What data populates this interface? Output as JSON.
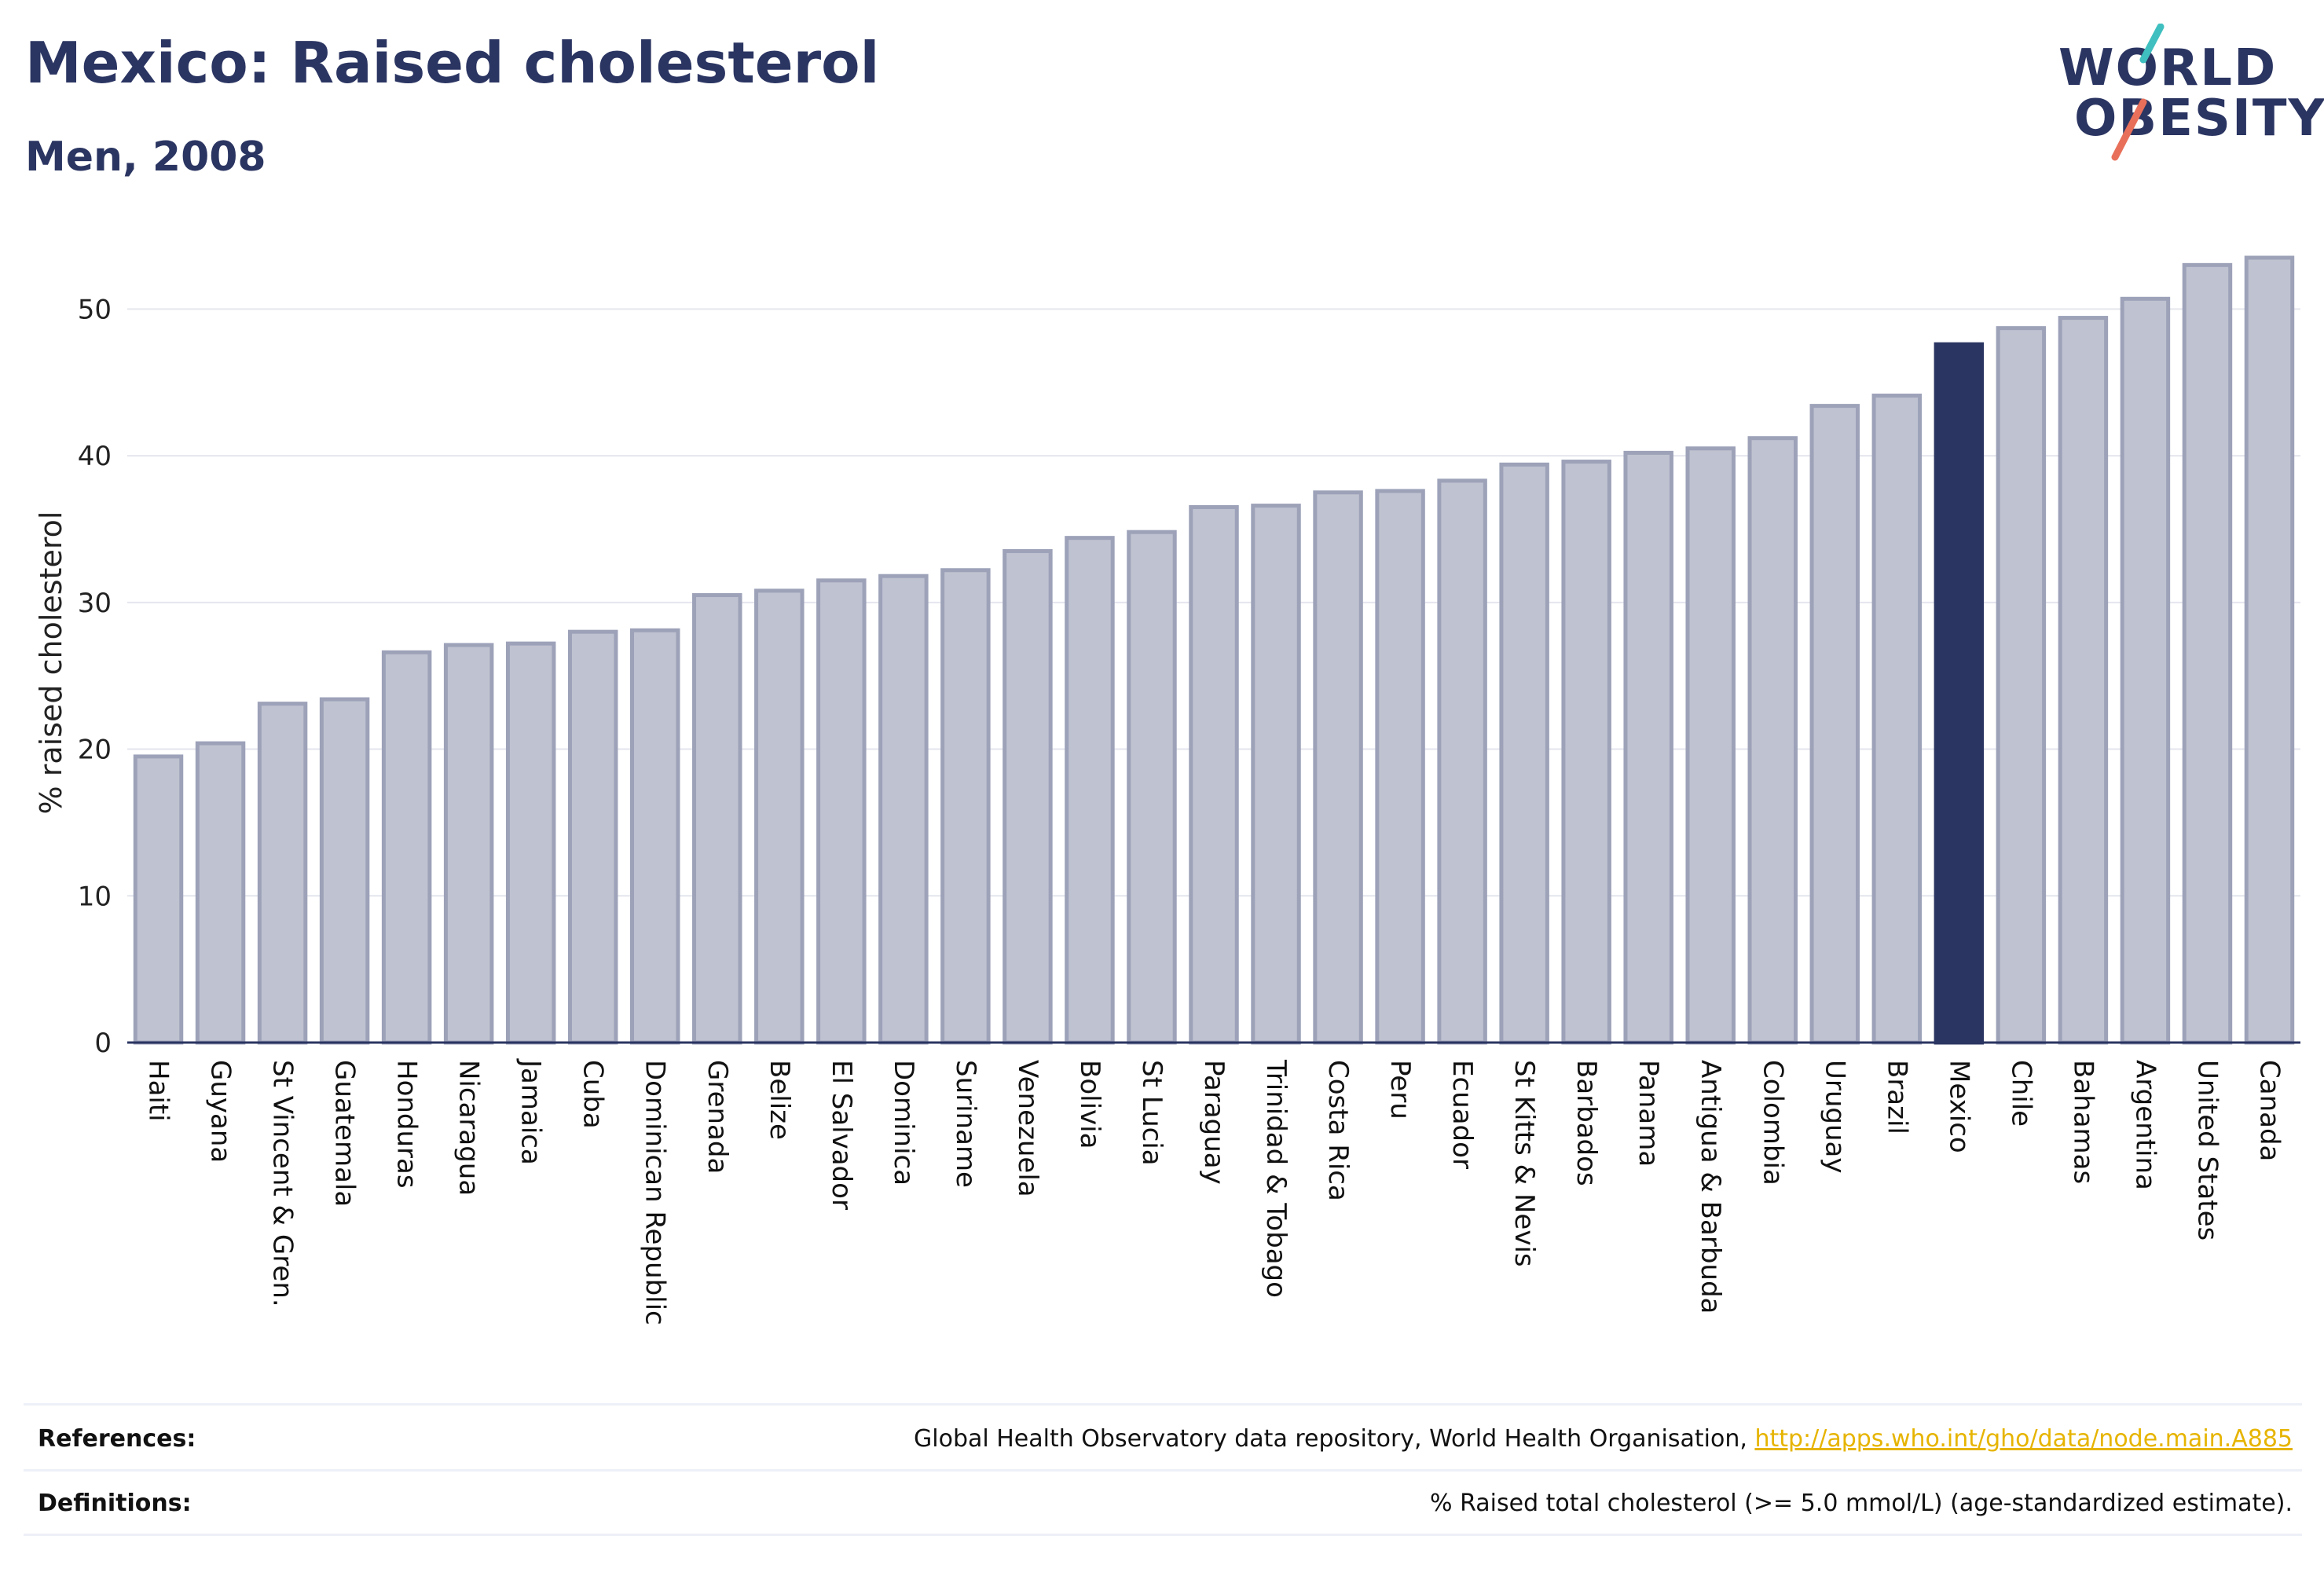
{
  "header": {
    "title": "Mexico: Raised cholesterol",
    "subtitle": "Men, 2008"
  },
  "logo": {
    "line1": "WORLD",
    "line2": "OBESITY",
    "slash_colors": [
      "#3fbfbf",
      "#e8705a"
    ]
  },
  "colors": {
    "highlight": "#2b3562",
    "bar_fill": "#bfc2d0",
    "bar_edge": "#9da2b9",
    "grid": "#e4e6ee",
    "axis": "#2b3562",
    "title": "#2b3562",
    "link": "#e6b400"
  },
  "chart_data": {
    "type": "bar",
    "ylabel": "% raised cholesterol",
    "ylim": [
      0,
      55
    ],
    "yticks": [
      0,
      10,
      20,
      30,
      40,
      50
    ],
    "highlight": "Mexico",
    "grid": true,
    "categories": [
      "Haiti",
      "Guyana",
      "St Vincent & Gren.",
      "Guatemala",
      "Honduras",
      "Nicaragua",
      "Jamaica",
      "Cuba",
      "Dominican Republic",
      "Grenada",
      "Belize",
      "El Salvador",
      "Dominica",
      "Suriname",
      "Venezuela",
      "Bolivia",
      "St Lucia",
      "Paraguay",
      "Trinidad & Tobago",
      "Costa Rica",
      "Peru",
      "Ecuador",
      "St Kitts & Nevis",
      "Barbados",
      "Panama",
      "Antigua & Barbuda",
      "Colombia",
      "Uruguay",
      "Brazil",
      "Mexico",
      "Chile",
      "Bahamas",
      "Argentina",
      "United States",
      "Canada"
    ],
    "values": [
      19.5,
      20.4,
      23.1,
      23.4,
      26.6,
      27.1,
      27.2,
      28.0,
      28.1,
      30.5,
      30.8,
      31.5,
      31.8,
      32.2,
      33.5,
      34.4,
      34.8,
      36.5,
      36.6,
      37.5,
      37.6,
      38.3,
      39.4,
      39.6,
      40.2,
      40.5,
      41.2,
      43.4,
      44.1,
      47.6,
      48.7,
      49.4,
      50.7,
      53.0,
      53.5
    ]
  },
  "footer": {
    "references_label": "References:",
    "references_text": "Global Health Observatory data repository, World Health Organisation, ",
    "references_link": "http://apps.who.int/gho/data/node.main.A885",
    "definitions_label": "Definitions:",
    "definitions_text": "% Raised total cholesterol (>= 5.0 mmol/L) (age-standardized estimate)."
  }
}
